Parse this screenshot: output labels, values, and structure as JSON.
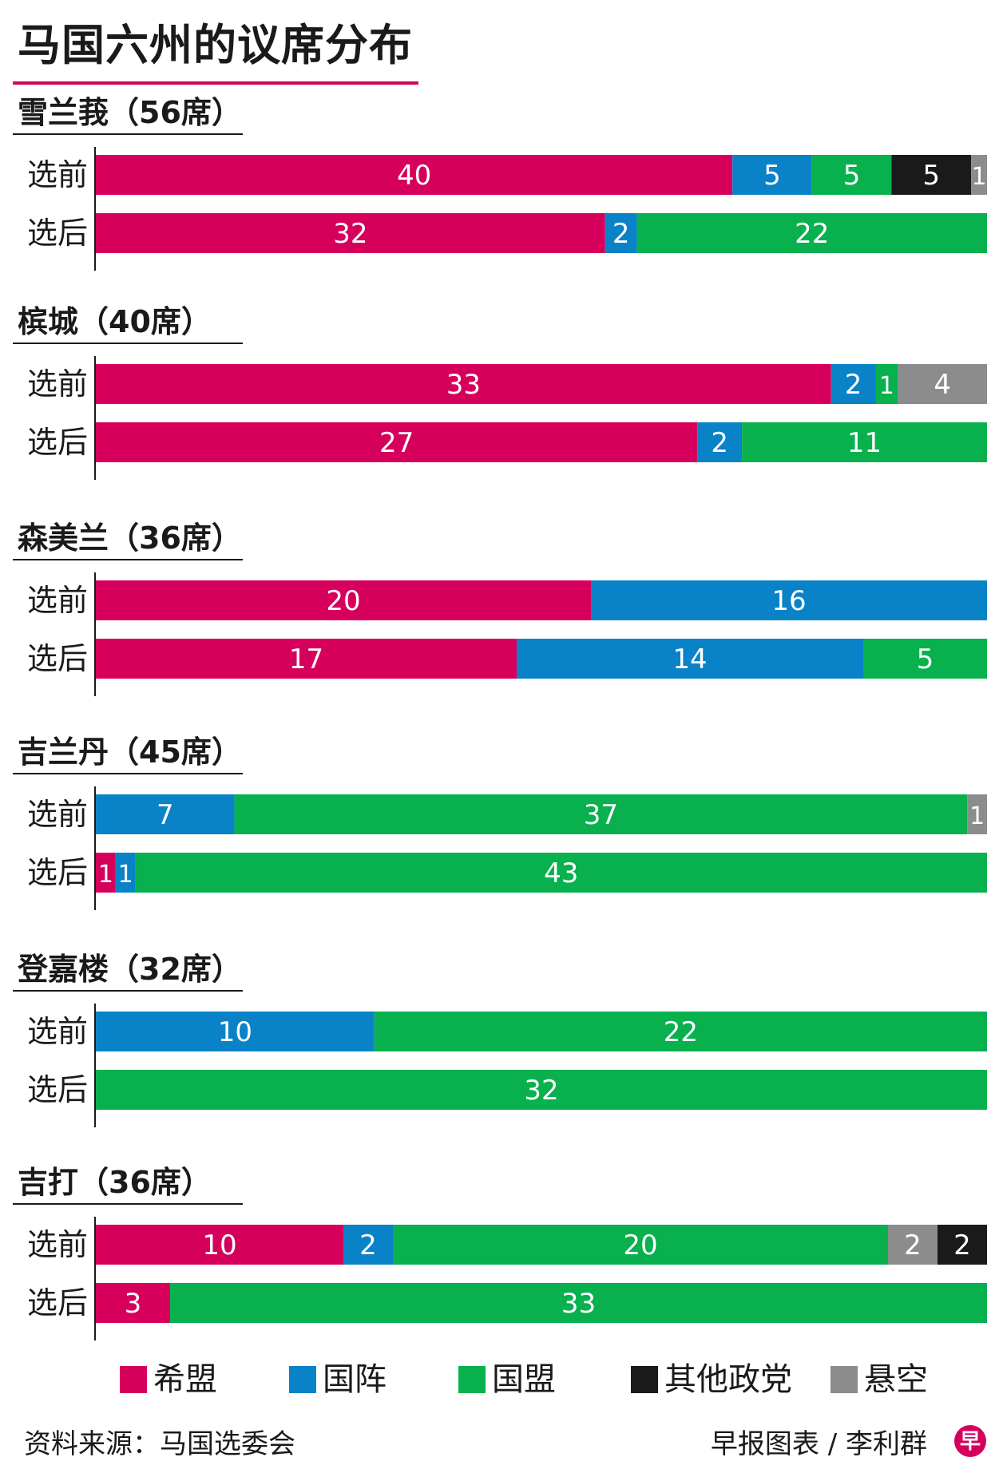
{
  "title": "马国六州的议席分布",
  "colors": {
    "希盟": "#d6005c",
    "国阵": "#0a82c8",
    "国盟": "#08b04e",
    "其他政党": "#1a1a1a",
    "悬空": "#8c8c8c"
  },
  "chart_data": {
    "type": "bar",
    "orientation": "horizontal",
    "stacked": true,
    "legend_position": "bottom",
    "series_names": [
      "希盟",
      "国阵",
      "国盟",
      "其他政党",
      "悬空"
    ],
    "groups": [
      {
        "label": "雪兰莪（56席）",
        "rows": [
          {
            "label": "选前",
            "segments": [
              {
                "party": "希盟",
                "value": 40
              },
              {
                "party": "国阵",
                "value": 5
              },
              {
                "party": "国盟",
                "value": 5
              },
              {
                "party": "其他政党",
                "value": 5
              },
              {
                "party": "悬空",
                "value": 1
              }
            ]
          },
          {
            "label": "选后",
            "segments": [
              {
                "party": "希盟",
                "value": 32
              },
              {
                "party": "国阵",
                "value": 2
              },
              {
                "party": "国盟",
                "value": 22
              }
            ]
          }
        ]
      },
      {
        "label": "槟城（40席）",
        "rows": [
          {
            "label": "选前",
            "segments": [
              {
                "party": "希盟",
                "value": 33
              },
              {
                "party": "国阵",
                "value": 2
              },
              {
                "party": "国盟",
                "value": 1
              },
              {
                "party": "悬空",
                "value": 4
              }
            ]
          },
          {
            "label": "选后",
            "segments": [
              {
                "party": "希盟",
                "value": 27
              },
              {
                "party": "国阵",
                "value": 2
              },
              {
                "party": "国盟",
                "value": 11
              }
            ]
          }
        ]
      },
      {
        "label": "森美兰（36席）",
        "rows": [
          {
            "label": "选前",
            "segments": [
              {
                "party": "希盟",
                "value": 20
              },
              {
                "party": "国阵",
                "value": 16
              }
            ]
          },
          {
            "label": "选后",
            "segments": [
              {
                "party": "希盟",
                "value": 17
              },
              {
                "party": "国阵",
                "value": 14
              },
              {
                "party": "国盟",
                "value": 5
              }
            ]
          }
        ]
      },
      {
        "label": "吉兰丹（45席）",
        "rows": [
          {
            "label": "选前",
            "segments": [
              {
                "party": "国阵",
                "value": 7
              },
              {
                "party": "国盟",
                "value": 37
              },
              {
                "party": "悬空",
                "value": 1
              }
            ]
          },
          {
            "label": "选后",
            "segments": [
              {
                "party": "希盟",
                "value": 1
              },
              {
                "party": "国阵",
                "value": 1
              },
              {
                "party": "国盟",
                "value": 43
              }
            ]
          }
        ]
      },
      {
        "label": "登嘉楼（32席）",
        "rows": [
          {
            "label": "选前",
            "segments": [
              {
                "party": "国阵",
                "value": 10
              },
              {
                "party": "国盟",
                "value": 22
              }
            ]
          },
          {
            "label": "选后",
            "segments": [
              {
                "party": "国盟",
                "value": 32
              }
            ]
          }
        ]
      },
      {
        "label": "吉打（36席）",
        "rows": [
          {
            "label": "选前",
            "segments": [
              {
                "party": "希盟",
                "value": 10
              },
              {
                "party": "国阵",
                "value": 2
              },
              {
                "party": "国盟",
                "value": 20
              },
              {
                "party": "悬空",
                "value": 2
              },
              {
                "party": "其他政党",
                "value": 2
              }
            ]
          },
          {
            "label": "选后",
            "segments": [
              {
                "party": "希盟",
                "value": 3
              },
              {
                "party": "国盟",
                "value": 33
              }
            ]
          }
        ]
      }
    ]
  },
  "legend": [
    {
      "label": "希盟"
    },
    {
      "label": "国阵"
    },
    {
      "label": "国盟"
    },
    {
      "label": "其他政党"
    },
    {
      "label": "悬空"
    }
  ],
  "footer": {
    "source": "资料来源：马国选委会",
    "credit": "早报图表 / 李利群",
    "logo_glyph": "早"
  }
}
